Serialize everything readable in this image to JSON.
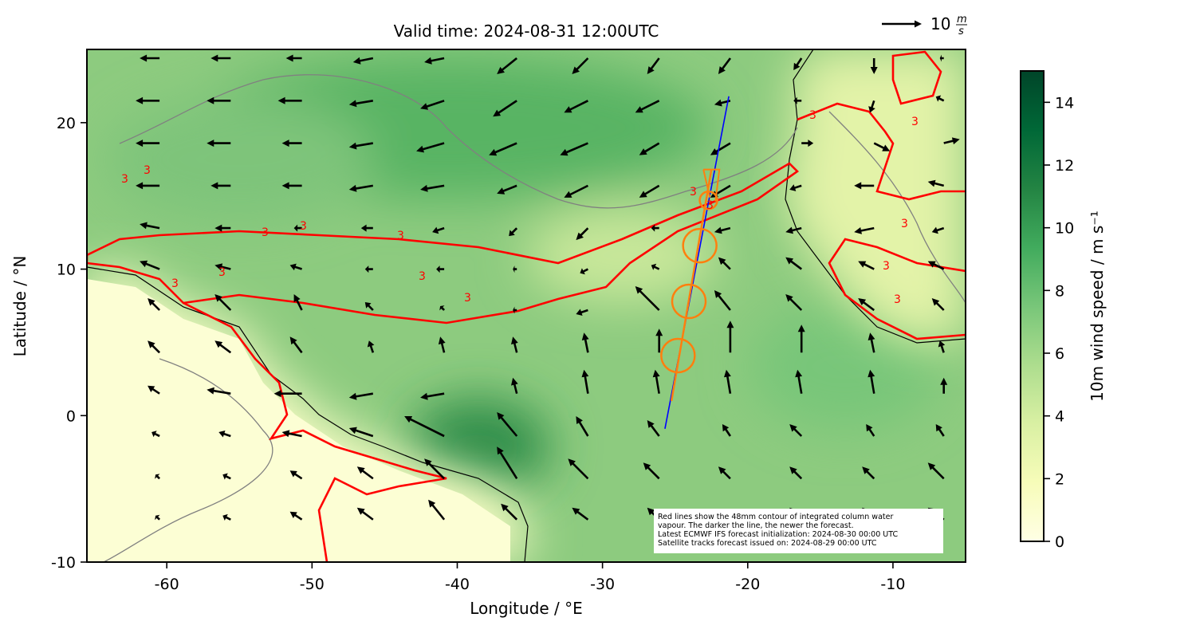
{
  "chart_data": {
    "type": "wind-map",
    "title": "Valid time: 2024-08-31 12:00UTC",
    "x_label": "Longitude / °E",
    "y_label": "Latitude / °N",
    "xlim": [
      -65.5,
      -5.0
    ],
    "xticks": [
      -60,
      -50,
      -40,
      -30,
      -20,
      -10
    ],
    "ylim": [
      -10,
      25
    ],
    "yticks": [
      -10,
      0,
      10,
      20
    ],
    "contour_label": "3",
    "reference_arrow": {
      "value": 10,
      "unit_numerator": "m",
      "unit_denominator": "s"
    },
    "colorbar": {
      "label": "10m wind speed / m s⁻¹",
      "lim": [
        0,
        15
      ],
      "ticks": [
        0,
        2,
        4,
        6,
        8,
        10,
        12,
        14
      ],
      "colors": [
        "#ffffe5",
        "#f7fcb9",
        "#d9f0a3",
        "#addd8e",
        "#78c679",
        "#41ab5d",
        "#238443",
        "#006837",
        "#004529"
      ]
    },
    "track": {
      "color": "#0000ff",
      "lon": [
        -25.7,
        -21.3
      ],
      "lat": [
        -0.9,
        21.8
      ]
    },
    "footprint": {
      "color": "#ff7f0e",
      "lon": [
        -25.25,
        -22.5
      ],
      "lat": [
        1.0,
        16.8
      ],
      "circle_lon": [
        -22.7,
        -23.3,
        -24.05,
        -24.8
      ],
      "circle_lat": [
        14.7,
        11.6,
        7.8,
        4.1
      ]
    },
    "note": [
      "Red lines show the 48mm contour of integrated column water",
      "vapour. The darker the line, the newer the forecast.",
      "Latest ECMWF IFS forecast initialization: 2024-08-30 00:00 UTC",
      "Satellite tracks forecast issued on: 2024-08-29 00:00 UTC"
    ],
    "wind": {
      "lon": [
        -60.5,
        -55.6,
        -50.7,
        -45.8,
        -40.9,
        -35.9,
        -31.0,
        -26.1,
        -21.2,
        -16.3,
        -11.3,
        -6.5
      ],
      "lat": [
        24.4,
        21.5,
        18.6,
        15.7,
        12.8,
        10.0,
        7.2,
        4.3,
        1.5,
        -1.4,
        -4.3,
        -7.1
      ],
      "u": [
        [
          -5,
          -5,
          -4,
          -5,
          -5,
          -5,
          -4,
          -3,
          -3,
          -2,
          0,
          -1
        ],
        [
          -6,
          -6,
          -6,
          -6,
          -6,
          -6,
          -6,
          -6,
          -4,
          -2,
          -1,
          -2
        ],
        [
          -6,
          -6,
          -5,
          -6,
          -7,
          -7,
          -7,
          -5,
          -5,
          3,
          4,
          4
        ],
        [
          -6,
          -5,
          -5,
          -6,
          -6,
          -5,
          -6,
          -5,
          -5,
          -3,
          -5,
          -4
        ],
        [
          -5,
          -4,
          -2,
          -3,
          -3,
          -2,
          -3,
          -2,
          -4,
          -4,
          -5,
          -3
        ],
        [
          -5,
          -4,
          -3,
          -2,
          -2,
          -1,
          -2,
          -2,
          -3,
          -4,
          -4,
          -4
        ],
        [
          -3,
          -4,
          -2,
          -2,
          -1,
          -1,
          -3,
          -6,
          -4,
          -4,
          -4,
          -3
        ],
        [
          -3,
          -4,
          -3,
          -1,
          -1,
          -1,
          -1,
          0,
          0,
          0,
          -1,
          -1
        ],
        [
          -3,
          -6,
          -7,
          -6,
          -6,
          -1,
          -1,
          -1,
          -1,
          -1,
          -1,
          0
        ],
        [
          -2,
          -3,
          -5,
          -6,
          -10,
          -5,
          -3,
          -3,
          -2,
          -3,
          -2,
          -2
        ],
        [
          -1,
          -2,
          -3,
          -4,
          -5,
          -5,
          -5,
          -4,
          -3,
          -3,
          -3,
          -4
        ],
        [
          -1,
          -2,
          -3,
          -4,
          -4,
          -4,
          -4,
          -3,
          -3,
          -3,
          -3,
          -4
        ]
      ],
      "v": [
        [
          0,
          0,
          0,
          -1,
          -1,
          -4,
          -4,
          -4,
          -4,
          -3,
          -4,
          0
        ],
        [
          0,
          0,
          0,
          -1,
          -2,
          -4,
          -3,
          -3,
          -1,
          0,
          -3,
          1
        ],
        [
          0,
          0,
          0,
          -1,
          -2,
          -3,
          -3,
          -3,
          -3,
          0,
          -2,
          1
        ],
        [
          0,
          0,
          0,
          -1,
          -1,
          -2,
          -3,
          -3,
          -3,
          -1,
          0,
          1
        ],
        [
          1,
          0,
          0,
          0,
          -1,
          -2,
          -3,
          0,
          -1,
          -1,
          -1,
          -1
        ],
        [
          2,
          1,
          1,
          0,
          0,
          0,
          -1,
          1,
          3,
          3,
          2,
          2
        ],
        [
          3,
          4,
          4,
          2,
          1,
          0,
          -1,
          6,
          5,
          4,
          3,
          3
        ],
        [
          3,
          3,
          4,
          3,
          4,
          4,
          5,
          6,
          8,
          7,
          5,
          3
        ],
        [
          2,
          1,
          0,
          -1,
          -1,
          4,
          6,
          6,
          6,
          6,
          6,
          4
        ],
        [
          1,
          1,
          1,
          2,
          5,
          6,
          5,
          4,
          3,
          3,
          3,
          3
        ],
        [
          1,
          1,
          2,
          3,
          5,
          8,
          5,
          4,
          3,
          3,
          3,
          4
        ],
        [
          1,
          1,
          2,
          3,
          5,
          4,
          3,
          3,
          2,
          3,
          3,
          3
        ]
      ]
    }
  }
}
